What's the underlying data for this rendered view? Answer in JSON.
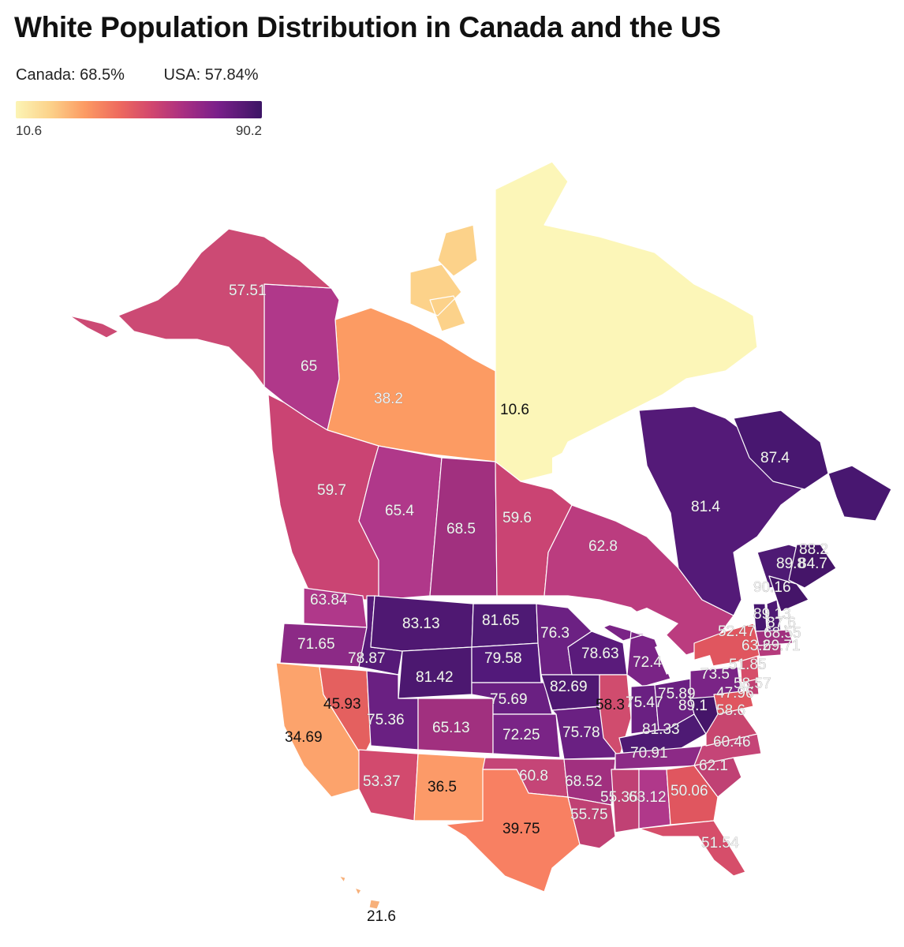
{
  "title": "White Population Distribution in Canada and the US",
  "subtitle": {
    "canada": "Canada: 68.5%",
    "usa": "USA: 57.84%"
  },
  "legend": {
    "min": "10.6",
    "max": "90.2"
  },
  "colors": {
    "low": "#fcf4b5",
    "mid": "#d2476e",
    "high": "#3c1565"
  },
  "chart_data": {
    "type": "choropleth",
    "scale": {
      "min": 10.6,
      "max": 90.2
    },
    "regions": [
      {
        "name": "Alaska",
        "value": 57.51
      },
      {
        "name": "Yukon",
        "value": 65
      },
      {
        "name": "Northwest Territories",
        "value": 38.2
      },
      {
        "name": "Nunavut",
        "value": 10.6
      },
      {
        "name": "British Columbia",
        "value": 59.7
      },
      {
        "name": "Alberta",
        "value": 65.4
      },
      {
        "name": "Saskatchewan",
        "value": 68.5
      },
      {
        "name": "Manitoba",
        "value": 59.6
      },
      {
        "name": "Ontario",
        "value": 62.8
      },
      {
        "name": "Quebec",
        "value": 81.4
      },
      {
        "name": "Newfoundland and Labrador",
        "value": 87.4
      },
      {
        "name": "Nova Scotia",
        "value": 89.8
      },
      {
        "name": "Prince Edward Island",
        "value": 88.2
      },
      {
        "name": "New Brunswick",
        "value": 84.7
      },
      {
        "name": "Maine",
        "value": 90.16
      },
      {
        "name": "Vermont",
        "value": 89.13
      },
      {
        "name": "New Hampshire",
        "value": 87.6
      },
      {
        "name": "Massachusetts",
        "value": 69.71
      },
      {
        "name": "Rhode Island",
        "value": 68.55
      },
      {
        "name": "Connecticut",
        "value": 63.2
      },
      {
        "name": "New York",
        "value": 52.47
      },
      {
        "name": "New Jersey",
        "value": 51.85
      },
      {
        "name": "Pennsylvania",
        "value": 73.5
      },
      {
        "name": "Delaware",
        "value": 58.57
      },
      {
        "name": "Maryland",
        "value": 47.96
      },
      {
        "name": "West Virginia",
        "value": 89.1
      },
      {
        "name": "Virginia",
        "value": 58.6
      },
      {
        "name": "Ohio",
        "value": 75.89
      },
      {
        "name": "Indiana",
        "value": 75.47
      },
      {
        "name": "Illinois",
        "value": 58.3
      },
      {
        "name": "Michigan",
        "value": 72.4
      },
      {
        "name": "Kentucky",
        "value": 81.33
      },
      {
        "name": "Tennessee",
        "value": 70.91
      },
      {
        "name": "North Carolina",
        "value": 60.46
      },
      {
        "name": "South Carolina",
        "value": 62.1
      },
      {
        "name": "Georgia",
        "value": 50.06
      },
      {
        "name": "Alabama",
        "value": 63.12
      },
      {
        "name": "Mississippi",
        "value": 55.35
      },
      {
        "name": "Florida",
        "value": 51.54
      },
      {
        "name": "Louisiana",
        "value": 55.75
      },
      {
        "name": "Arkansas",
        "value": 68.52
      },
      {
        "name": "Oklahoma",
        "value": 60.8
      },
      {
        "name": "Texas",
        "value": 39.75
      },
      {
        "name": "New Mexico",
        "value": 36.5
      },
      {
        "name": "Arizona",
        "value": 53.37
      },
      {
        "name": "California",
        "value": 34.69
      },
      {
        "name": "Nevada",
        "value": 45.93
      },
      {
        "name": "Utah",
        "value": 75.36
      },
      {
        "name": "Colorado",
        "value": 65.13
      },
      {
        "name": "Kansas",
        "value": 72.25
      },
      {
        "name": "Missouri",
        "value": 75.78
      },
      {
        "name": "Iowa",
        "value": 82.69
      },
      {
        "name": "Nebraska",
        "value": 75.69
      },
      {
        "name": "South Dakota",
        "value": 79.58
      },
      {
        "name": "North Dakota",
        "value": 81.65
      },
      {
        "name": "Minnesota",
        "value": 76.3
      },
      {
        "name": "Wisconsin",
        "value": 78.63
      },
      {
        "name": "Wyoming",
        "value": 81.42
      },
      {
        "name": "Montana",
        "value": 83.13
      },
      {
        "name": "Idaho",
        "value": 78.87
      },
      {
        "name": "Washington",
        "value": 63.84
      },
      {
        "name": "Oregon",
        "value": 71.65
      },
      {
        "name": "Hawaii",
        "value": 21.6
      }
    ]
  },
  "labels": [
    {
      "id": "alaska",
      "text": "57.51"
    },
    {
      "id": "yukon",
      "text": "65"
    },
    {
      "id": "nwt",
      "text": "38.2"
    },
    {
      "id": "nunavut",
      "text": "10.6"
    },
    {
      "id": "nl",
      "text": "87.4"
    },
    {
      "id": "quebec",
      "text": "81.4"
    },
    {
      "id": "bc",
      "text": "59.7"
    },
    {
      "id": "alberta",
      "text": "65.4"
    },
    {
      "id": "sask",
      "text": "68.5"
    },
    {
      "id": "manitoba",
      "text": "59.6"
    },
    {
      "id": "ontario",
      "text": "62.8"
    },
    {
      "id": "pei",
      "text": "88.2"
    },
    {
      "id": "ns",
      "text": "89.8"
    },
    {
      "id": "nb",
      "text": "84.7"
    },
    {
      "id": "maine",
      "text": "90.16"
    },
    {
      "id": "washington",
      "text": "63.84"
    },
    {
      "id": "montana",
      "text": "83.13"
    },
    {
      "id": "nd",
      "text": "81.65"
    },
    {
      "id": "minnesota",
      "text": "76.3"
    },
    {
      "id": "vermont",
      "text": "89.13"
    },
    {
      "id": "nh",
      "text": "87.6"
    },
    {
      "id": "ny",
      "text": "52.47"
    },
    {
      "id": "ri",
      "text": "68.55"
    },
    {
      "id": "ma",
      "text": "69.71"
    },
    {
      "id": "ct",
      "text": "63.2"
    },
    {
      "id": "oregon",
      "text": "71.65"
    },
    {
      "id": "idaho",
      "text": "78.87"
    },
    {
      "id": "sd",
      "text": "79.58"
    },
    {
      "id": "wisconsin",
      "text": "78.63"
    },
    {
      "id": "michigan",
      "text": "72.4"
    },
    {
      "id": "nj",
      "text": "51.85"
    },
    {
      "id": "wyoming",
      "text": "81.42"
    },
    {
      "id": "iowa",
      "text": "82.69"
    },
    {
      "id": "pa",
      "text": "73.5"
    },
    {
      "id": "de",
      "text": "58.57"
    },
    {
      "id": "md",
      "text": "47.96"
    },
    {
      "id": "nevada",
      "text": "45.93"
    },
    {
      "id": "nebraska",
      "text": "75.69"
    },
    {
      "id": "illinois",
      "text": "58.3"
    },
    {
      "id": "ohio",
      "text": "75.89"
    },
    {
      "id": "indiana",
      "text": "75.47"
    },
    {
      "id": "wv",
      "text": "89.1"
    },
    {
      "id": "virginia",
      "text": "58.6"
    },
    {
      "id": "utah",
      "text": "75.36"
    },
    {
      "id": "colorado",
      "text": "65.13"
    },
    {
      "id": "kansas",
      "text": "72.25"
    },
    {
      "id": "missouri",
      "text": "75.78"
    },
    {
      "id": "kentucky",
      "text": "81.33"
    },
    {
      "id": "california",
      "text": "34.69"
    },
    {
      "id": "nc",
      "text": "60.46"
    },
    {
      "id": "tennessee",
      "text": "70.91"
    },
    {
      "id": "sc",
      "text": "62.1"
    },
    {
      "id": "arizona",
      "text": "53.37"
    },
    {
      "id": "nm",
      "text": "36.5"
    },
    {
      "id": "oklahoma",
      "text": "60.8"
    },
    {
      "id": "arkansas",
      "text": "68.52"
    },
    {
      "id": "mississippi",
      "text": "55.35"
    },
    {
      "id": "alabama",
      "text": "63.12"
    },
    {
      "id": "georgia",
      "text": "50.06"
    },
    {
      "id": "louisiana",
      "text": "55.75"
    },
    {
      "id": "texas",
      "text": "39.75"
    },
    {
      "id": "florida",
      "text": "51.54"
    },
    {
      "id": "hawaii",
      "text": "21.6"
    }
  ]
}
